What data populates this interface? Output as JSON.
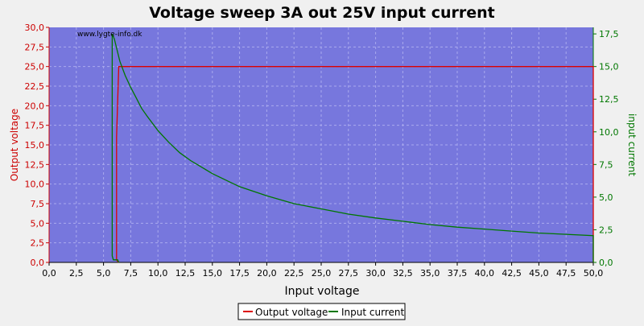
{
  "chart_data": {
    "type": "line",
    "title": "Voltage sweep 3A out 25V input current",
    "watermark": "www.lygte-info.dk",
    "xlabel": "Input voltage",
    "ylabel_left": "Output voltage",
    "ylabel_right": "input current",
    "xlim": [
      0,
      50
    ],
    "ylim_left": [
      0,
      30
    ],
    "ylim_right": [
      0,
      18
    ],
    "x_ticks": [
      "0,0",
      "2,5",
      "5,0",
      "7,5",
      "10,0",
      "12,5",
      "15,0",
      "17,5",
      "20,0",
      "22,5",
      "25,0",
      "27,5",
      "30,0",
      "32,5",
      "35,0",
      "37,5",
      "40,0",
      "42,5",
      "45,0",
      "47,5",
      "50,0"
    ],
    "y_left_ticks": [
      "0,0",
      "2,5",
      "5,0",
      "7,5",
      "10,0",
      "12,5",
      "15,0",
      "17,5",
      "20,0",
      "22,5",
      "25,0",
      "27,5",
      "30,0"
    ],
    "y_right_ticks": [
      "0,0",
      "2,5",
      "5,0",
      "7,5",
      "10,0",
      "12,5",
      "15,0",
      "17,5"
    ],
    "grid": true,
    "legend_position": "bottom-center",
    "colors": {
      "plot_bg": "#7777dd",
      "page_bg": "#f0f0f0",
      "output_voltage": "#dd0000",
      "input_current": "#007700",
      "grid": "#aaaaee"
    },
    "series": [
      {
        "name": "Output voltage",
        "axis": "left",
        "x": [
          6.4,
          6.2,
          6.2,
          6.4,
          50.0,
          50.0
        ],
        "y": [
          0.0,
          0.3,
          16.0,
          25.0,
          25.0,
          0.0
        ]
      },
      {
        "name": "Input current",
        "axis": "right",
        "x": [
          5.8,
          6.0,
          6.5,
          7.0,
          7.5,
          8.0,
          8.5,
          9.0,
          10.0,
          11.0,
          12.0,
          13.0,
          14.0,
          15.0,
          16.0,
          17.5,
          20.0,
          22.5,
          25.0,
          27.5,
          30.0,
          32.5,
          35.0,
          37.5,
          40.0,
          42.5,
          45.0,
          47.5,
          50.0,
          50.0
        ],
        "y": [
          17.5,
          17.1,
          15.4,
          14.3,
          13.4,
          12.6,
          11.8,
          11.2,
          10.1,
          9.2,
          8.4,
          7.8,
          7.3,
          6.8,
          6.4,
          5.8,
          5.1,
          4.5,
          4.1,
          3.7,
          3.4,
          3.15,
          2.9,
          2.7,
          2.55,
          2.4,
          2.25,
          2.15,
          2.05,
          0.0
        ]
      },
      {
        "name": "Input current",
        "axis": "right",
        "legend": false,
        "x": [
          5.8,
          5.8,
          5.9,
          6.0,
          6.1,
          6.3,
          6.4
        ],
        "y": [
          17.5,
          0.5,
          0.2,
          0.2,
          0.2,
          0.2,
          0.0
        ]
      }
    ]
  },
  "legend": {
    "items": [
      {
        "label": "Output voltage",
        "color": "#dd0000"
      },
      {
        "label": "Input current",
        "color": "#007700"
      }
    ]
  }
}
